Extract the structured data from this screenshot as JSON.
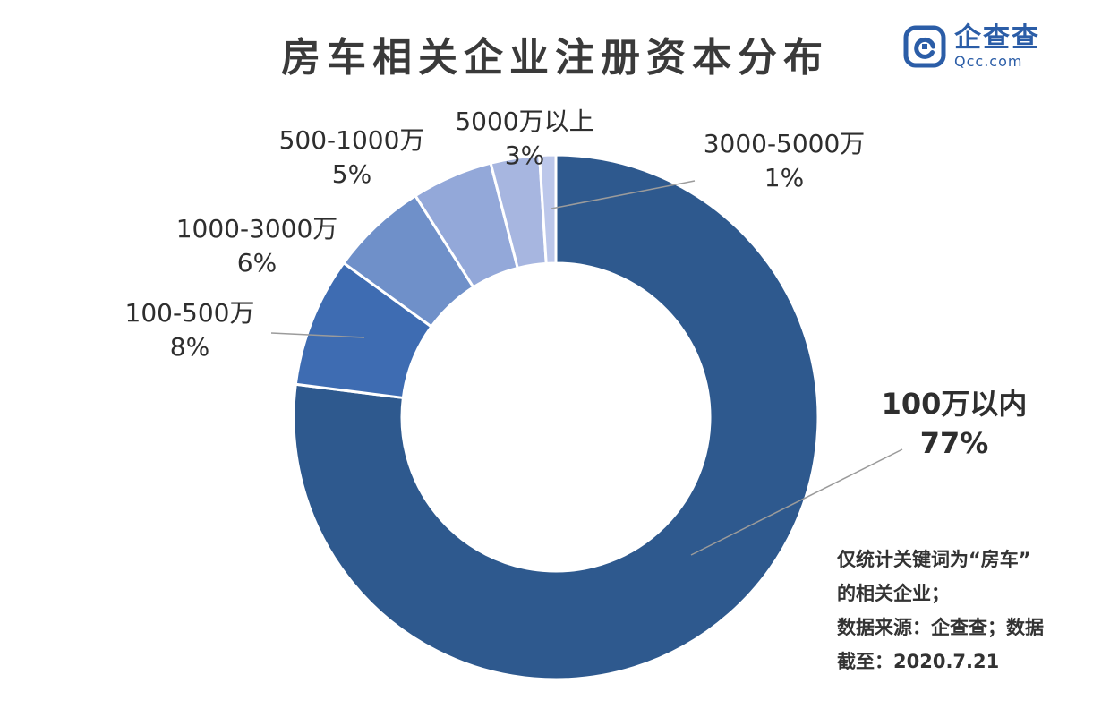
{
  "title": "房车相关企业注册资本分布",
  "logo": {
    "name": "企查查",
    "domain": "Qcc.com",
    "brand_color": "#2b5da7"
  },
  "chart_data": {
    "type": "pie",
    "donut": true,
    "start_angle": "top",
    "direction": "clockwise",
    "title": "房车相关企业注册资本分布",
    "legend_position": "none",
    "segments": [
      {
        "label": "100万以内",
        "value": 77,
        "pct_label": "77%",
        "color": "#2e598e"
      },
      {
        "label": "100-500万",
        "value": 8,
        "pct_label": "8%",
        "color": "#3e6cb2"
      },
      {
        "label": "1000-3000万",
        "value": 6,
        "pct_label": "6%",
        "color": "#6f90c9"
      },
      {
        "label": "500-1000万",
        "value": 5,
        "pct_label": "5%",
        "color": "#93a8d9"
      },
      {
        "label": "5000万以上",
        "value": 3,
        "pct_label": "3%",
        "color": "#a7b6e0"
      },
      {
        "label": "3000-5000万",
        "value": 1,
        "pct_label": "1%",
        "color": "#bcc7ea"
      }
    ],
    "leader_line_color": "#9b9b9b",
    "slice_border_color": "#ffffff"
  },
  "footnote": {
    "lines": [
      "仅统计关键词为“房车”",
      "的相关企业；",
      "数据来源：企查查；数据",
      "截至：2020.7.21"
    ]
  }
}
